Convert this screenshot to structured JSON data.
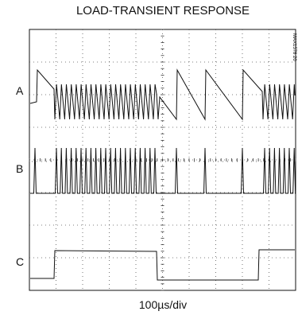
{
  "header": {
    "title": "LOAD-TRANSIENT RESPONSE"
  },
  "side_code": "MAX1578 20",
  "traces": [
    {
      "label": "A"
    },
    {
      "label": "B"
    },
    {
      "label": "C"
    }
  ],
  "x_axis": {
    "label": "100µs/div"
  }
}
